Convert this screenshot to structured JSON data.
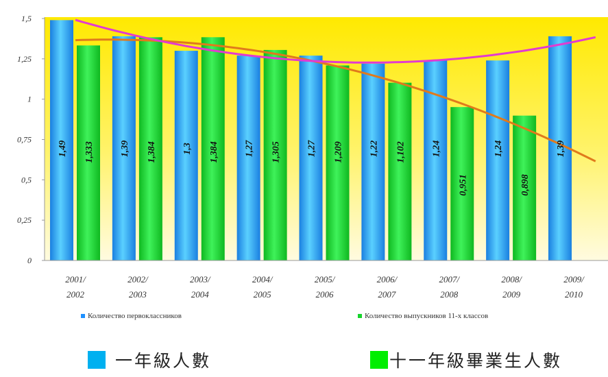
{
  "chart_data": {
    "type": "bar",
    "categories": [
      [
        "2001/",
        "2002"
      ],
      [
        "2002/",
        "2003"
      ],
      [
        "2003/",
        "2004"
      ],
      [
        "2004/",
        "2005"
      ],
      [
        "2005/",
        "2006"
      ],
      [
        "2006/",
        "2007"
      ],
      [
        "2007/",
        "2008"
      ],
      [
        "2008/",
        "2009"
      ],
      [
        "2009/",
        "2010"
      ]
    ],
    "series": [
      {
        "name": "Количество первоклассников",
        "color": "#1e90ff",
        "values": [
          1.49,
          1.39,
          1.3,
          1.27,
          1.27,
          1.22,
          1.24,
          1.24,
          1.39
        ],
        "labels": [
          "1,49",
          "1,39",
          "1,3",
          "1,27",
          "1,27",
          "1,22",
          "1,24",
          "1,24",
          "1,39"
        ]
      },
      {
        "name": "Количество выпускников 11-х классов",
        "color": "#16d42c",
        "values": [
          1.333,
          1.384,
          1.384,
          1.305,
          1.209,
          1.102,
          0.951,
          0.898,
          null
        ],
        "labels": [
          "1,333",
          "1,384",
          "1,384",
          "1,305",
          "1,209",
          "1,102",
          "0,951",
          "0,898",
          ""
        ]
      }
    ],
    "trendlines": [
      {
        "kind": "polynomial",
        "color": "#e23bd0",
        "follows": "Количество первоклассников"
      },
      {
        "kind": "polynomial",
        "color": "#e07a1c",
        "follows": "Количество выпускников 11-х классов"
      }
    ],
    "yticks": [
      "0",
      "0,25",
      "0,5",
      "0,75",
      "1",
      "1,25",
      "1,5"
    ],
    "ylim": [
      0,
      1.5
    ],
    "background": "yellow gradient",
    "title": "",
    "xlabel": "",
    "ylabel": ""
  },
  "legend_bottom": [
    {
      "label": "一年級人數",
      "color": "#00b0f0"
    },
    {
      "label": "十一年級畢業生人數",
      "color": "#00ee00"
    }
  ]
}
